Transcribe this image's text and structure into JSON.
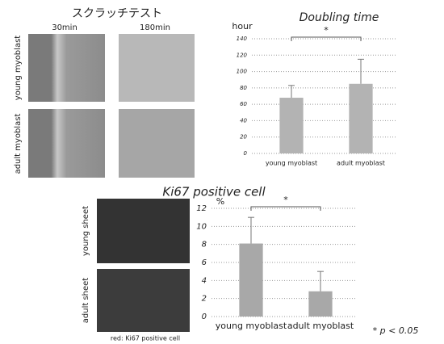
{
  "scratch_test": {
    "title": "スクラッチテスト",
    "columns": [
      "30min",
      "180min"
    ],
    "rows": [
      "young myoblast",
      "adult myoblast"
    ]
  },
  "ki67_images": {
    "rows": [
      "young sheet",
      "adult sheet"
    ],
    "caption": "red: Ki67 positive cell"
  },
  "chart_data": [
    {
      "type": "bar",
      "title": "Doubling time",
      "y_label": "hour",
      "categories": [
        "young myoblast",
        "adult myoblast"
      ],
      "values": [
        68,
        85
      ],
      "errors": [
        15,
        30
      ],
      "ylim": [
        0,
        140
      ],
      "yticks": [
        0,
        20,
        40,
        60,
        80,
        100,
        120,
        140
      ],
      "grid": true,
      "color": "#b3b3b3",
      "annotation": "*"
    },
    {
      "type": "bar",
      "title": "Ki67 positive cell",
      "y_label": "%",
      "categories": [
        "young myoblast",
        "adult myoblast"
      ],
      "values": [
        8.1,
        2.8
      ],
      "errors": [
        2.9,
        2.2
      ],
      "ylim": [
        0,
        12
      ],
      "yticks": [
        0,
        2,
        4,
        6,
        8,
        10,
        12
      ],
      "grid": true,
      "color": "#a8a8a8",
      "annotation": "*",
      "footnote": "* p < 0.05"
    }
  ]
}
